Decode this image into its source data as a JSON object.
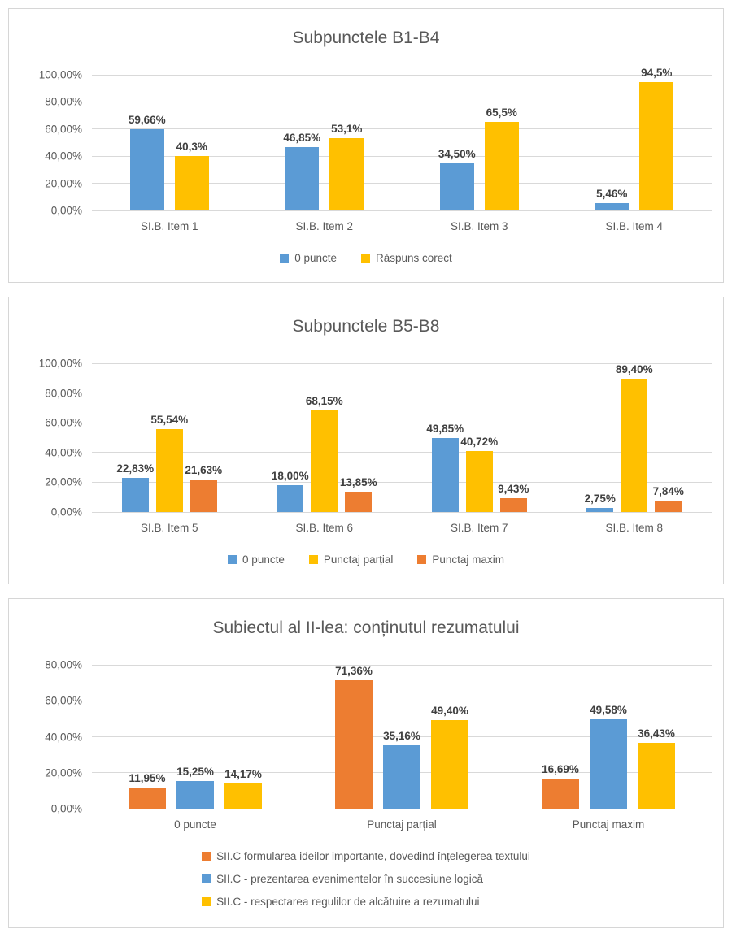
{
  "colors": {
    "series_blue": "#5B9BD5",
    "series_yellow": "#FFC000",
    "series_orange": "#ED7D31",
    "title_text": "#595959",
    "axis_text": "#595959",
    "data_label_text": "#404040",
    "gridline": "#D9D9D9",
    "panel_border": "#D6D6D6"
  },
  "chart_data": [
    {
      "type": "bar",
      "title": "Subpunctele B1-B4",
      "categories": [
        "SI.B. Item 1",
        "SI.B. Item 2",
        "SI.B. Item 3",
        "SI.B. Item 4"
      ],
      "series": [
        {
          "name": "0 puncte",
          "color": "#5B9BD5",
          "values": [
            59.66,
            46.85,
            34.5,
            5.46
          ],
          "labels": [
            "59,66%",
            "46,85%",
            "34,50%",
            "5,46%"
          ]
        },
        {
          "name": "Răspuns corect",
          "color": "#FFC000",
          "values": [
            40.3,
            53.1,
            65.5,
            94.5
          ],
          "labels": [
            "40,3%",
            "53,1%",
            "65,5%",
            "94,5%"
          ]
        }
      ],
      "xlabel": "",
      "ylabel": "",
      "ylim": [
        0,
        100
      ],
      "yticks": [
        "100,00%",
        "80,00%",
        "60,00%",
        "40,00%",
        "20,00%",
        "0,00%"
      ],
      "grid": true,
      "legend_position": "bottom-center-horizontal"
    },
    {
      "type": "bar",
      "title": "Subpunctele B5-B8",
      "categories": [
        "SI.B. Item 5",
        "SI.B. Item 6",
        "SI.B. Item 7",
        "SI.B. Item 8"
      ],
      "series": [
        {
          "name": "0 puncte",
          "color": "#5B9BD5",
          "values": [
            22.83,
            18.0,
            49.85,
            2.75
          ],
          "labels": [
            "22,83%",
            "18,00%",
            "49,85%",
            "2,75%"
          ]
        },
        {
          "name": "Punctaj parțial",
          "color": "#FFC000",
          "values": [
            55.54,
            68.15,
            40.72,
            89.4
          ],
          "labels": [
            "55,54%",
            "68,15%",
            "40,72%",
            "89,40%"
          ]
        },
        {
          "name": "Punctaj maxim",
          "color": "#ED7D31",
          "values": [
            21.63,
            13.85,
            9.43,
            7.84
          ],
          "labels": [
            "21,63%",
            "13,85%",
            "9,43%",
            "7,84%"
          ]
        }
      ],
      "xlabel": "",
      "ylabel": "",
      "ylim": [
        0,
        100
      ],
      "yticks": [
        "100,00%",
        "80,00%",
        "60,00%",
        "40,00%",
        "20,00%",
        "0,00%"
      ],
      "grid": true,
      "legend_position": "bottom-center-horizontal"
    },
    {
      "type": "bar",
      "title": "Subiectul al II-lea: conținutul rezumatului",
      "categories": [
        "0 puncte",
        "Punctaj parțial",
        "Punctaj maxim"
      ],
      "series": [
        {
          "name": "SII.C formularea ideilor importante, dovedind înțelegerea textului",
          "color": "#ED7D31",
          "values": [
            11.95,
            71.36,
            16.69
          ],
          "labels": [
            "11,95%",
            "71,36%",
            "16,69%"
          ]
        },
        {
          "name": "SII.C - prezentarea evenimentelor în succesiune logică",
          "color": "#5B9BD5",
          "values": [
            15.25,
            35.16,
            49.58
          ],
          "labels": [
            "15,25%",
            "35,16%",
            "49,58%"
          ]
        },
        {
          "name": "SII.C - respectarea regulilor de alcătuire a rezumatului",
          "color": "#FFC000",
          "values": [
            14.17,
            49.4,
            36.43
          ],
          "labels": [
            "14,17%",
            "49,40%",
            "36,43%"
          ]
        }
      ],
      "xlabel": "",
      "ylabel": "",
      "ylim": [
        0,
        80
      ],
      "yticks": [
        "80,00%",
        "60,00%",
        "40,00%",
        "20,00%",
        "0,00%"
      ],
      "grid": true,
      "legend_position": "bottom-stacked-left-aligned"
    }
  ]
}
